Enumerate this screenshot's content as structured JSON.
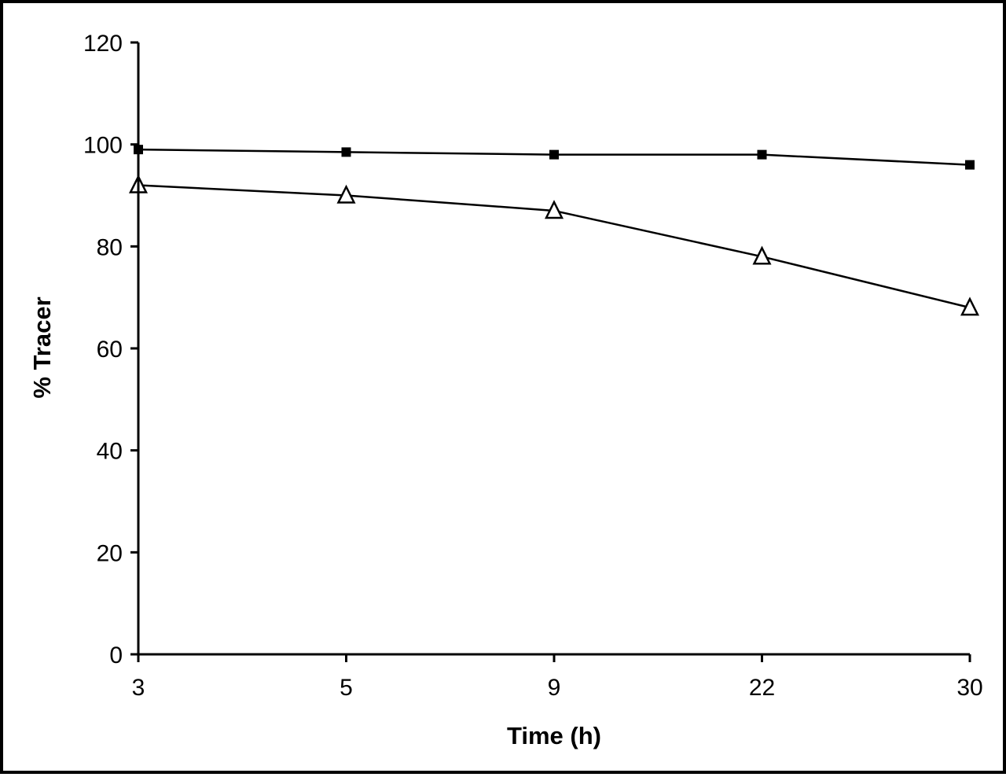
{
  "chart_data": {
    "type": "line",
    "title": "",
    "xlabel": "Time (h)",
    "ylabel": "% Tracer",
    "categories": [
      "3",
      "5",
      "9",
      "22",
      "30"
    ],
    "ylim": [
      0,
      120
    ],
    "yticks": [
      0,
      20,
      40,
      60,
      80,
      100,
      120
    ],
    "grid": false,
    "legend": "none",
    "series": [
      {
        "marker": "filled-square",
        "color": "#000000",
        "values": [
          99,
          98.5,
          98,
          98,
          96
        ]
      },
      {
        "marker": "open-triangle",
        "color": "#000000",
        "values": [
          92,
          90,
          87,
          78,
          68
        ]
      }
    ]
  }
}
